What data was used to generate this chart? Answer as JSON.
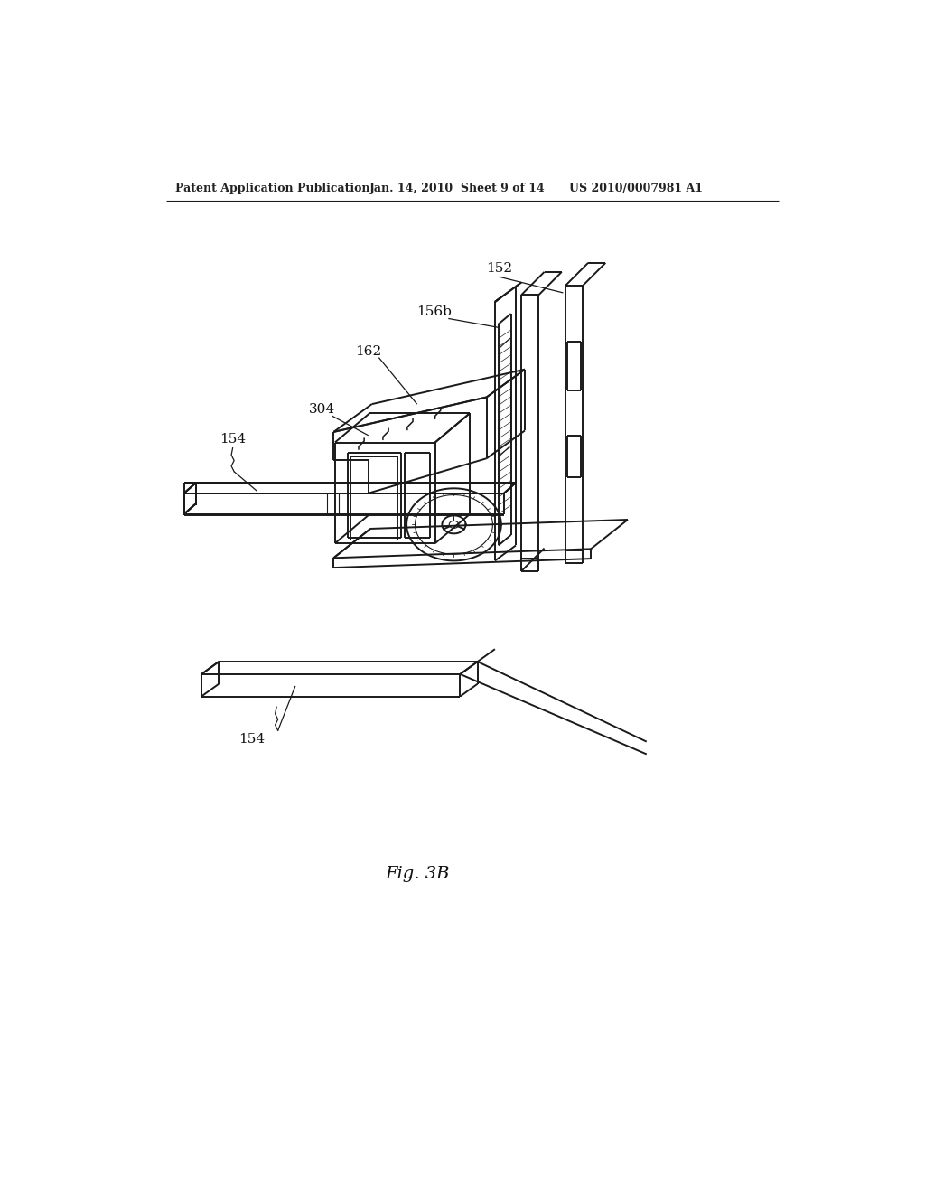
{
  "bg_color": "#ffffff",
  "header_left": "Patent Application Publication",
  "header_mid": "Jan. 14, 2010  Sheet 9 of 14",
  "header_right": "US 2010/0007981 A1",
  "fig_label": "Fig. 3B",
  "line_color": "#1a1a1a",
  "line_width": 1.4,
  "thin_lw": 0.8,
  "label_fontsize": 11,
  "header_fontsize": 9,
  "fig_label_fontsize": 14
}
